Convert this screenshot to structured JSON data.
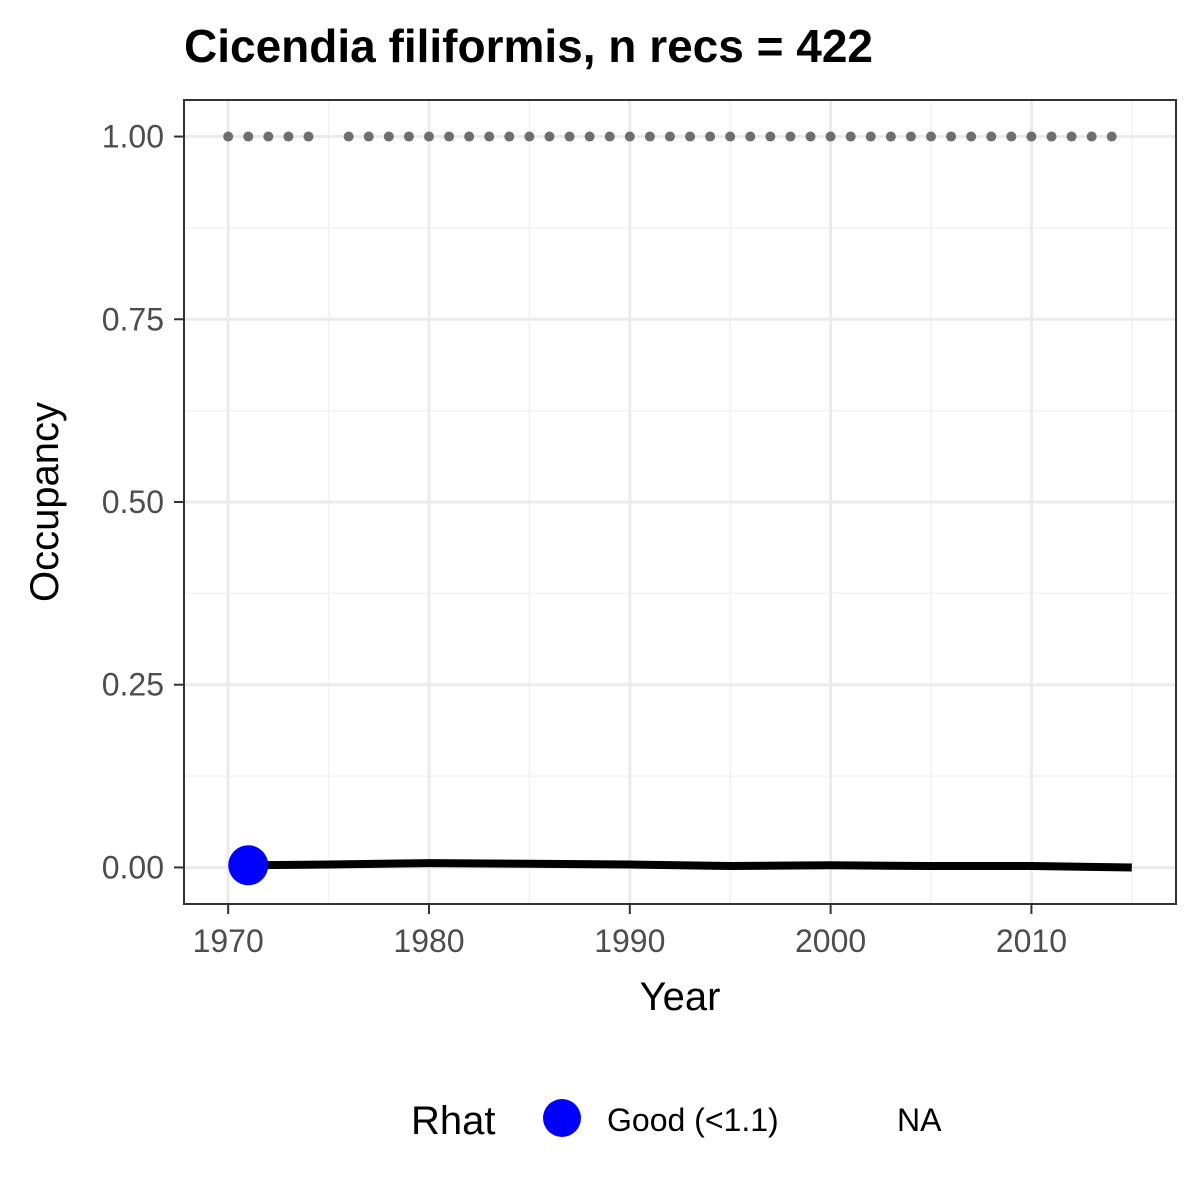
{
  "chart_data": {
    "type": "line",
    "title": "Cicendia filiformis, n recs = 422",
    "xlabel": "Year",
    "ylabel": "Occupancy",
    "xlim": [
      1967.8,
      2017.2
    ],
    "ylim": [
      -0.05,
      1.05
    ],
    "x_ticks": [
      1970,
      1980,
      1990,
      2000,
      2010
    ],
    "x_tick_labels": [
      "1970",
      "1980",
      "1990",
      "2000",
      "2010"
    ],
    "y_ticks": [
      0,
      0.25,
      0.5,
      0.75,
      1.0
    ],
    "y_tick_labels": [
      "0.00",
      "0.25",
      "0.50",
      "0.75",
      "1.00"
    ],
    "grid": true,
    "series": [
      {
        "role": "occupancy-line",
        "color": "#000000",
        "x": [
          1971,
          1975,
          1980,
          1985,
          1990,
          1995,
          2000,
          2005,
          2010,
          2015
        ],
        "y": [
          0.003,
          0.004,
          0.006,
          0.005,
          0.004,
          0.002,
          0.003,
          0.002,
          0.002,
          0.0
        ]
      },
      {
        "role": "upper-ci-dotted",
        "color": "#6e6e6e",
        "x": [
          1970,
          1971,
          1972,
          1973,
          1974,
          1976,
          1977,
          1978,
          1979,
          1980,
          1981,
          1982,
          1983,
          1984,
          1985,
          1986,
          1987,
          1988,
          1989,
          1990,
          1991,
          1992,
          1993,
          1994,
          1995,
          1996,
          1997,
          1998,
          1999,
          2000,
          2001,
          2002,
          2003,
          2004,
          2005,
          2006,
          2007,
          2008,
          2009,
          2010,
          2011,
          2012,
          2013,
          2014
        ],
        "y": [
          1,
          1,
          1,
          1,
          1,
          1,
          1,
          1,
          1,
          1,
          1,
          1,
          1,
          1,
          1,
          1,
          1,
          1,
          1,
          1,
          1,
          1,
          1,
          1,
          1,
          1,
          1,
          1,
          1,
          1,
          1,
          1,
          1,
          1,
          1,
          1,
          1,
          1,
          1,
          1,
          1,
          1,
          1,
          1
        ]
      }
    ],
    "rhat_points": [
      {
        "x": 1971,
        "y": 0.003,
        "category": "Good (<1.1)"
      }
    ],
    "legend": {
      "title": "Rhat",
      "position": "bottom",
      "entries": [
        {
          "label": "Good (<1.1)",
          "color": "#0000ff"
        },
        {
          "label": "NA",
          "color": ""
        }
      ]
    }
  }
}
